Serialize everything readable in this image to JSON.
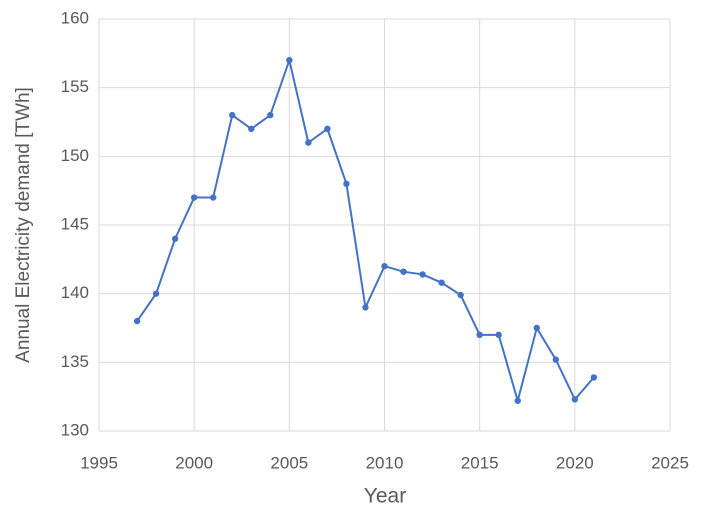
{
  "chart_data": {
    "type": "line",
    "xlabel": "Year",
    "ylabel": "Annual Electricity demand [TWh]",
    "x": [
      1997,
      1998,
      1999,
      2000,
      2001,
      2002,
      2003,
      2004,
      2005,
      2006,
      2007,
      2008,
      2009,
      2010,
      2011,
      2012,
      2013,
      2014,
      2015,
      2016,
      2017,
      2018,
      2019,
      2020,
      2021
    ],
    "series": [
      {
        "color": "#4472c4",
        "values": [
          138,
          140,
          144,
          147,
          147,
          153,
          152,
          153,
          157,
          151,
          152,
          148,
          139,
          142,
          141.6,
          141.4,
          140.8,
          139.9,
          137,
          137,
          132.2,
          137.5,
          135.2,
          132.3,
          133.9
        ]
      }
    ],
    "xlim": [
      1995,
      2025
    ],
    "xticks": [
      1995,
      2000,
      2005,
      2010,
      2015,
      2020,
      2025
    ],
    "ylim": [
      130,
      160
    ],
    "yticks": [
      130,
      135,
      140,
      145,
      150,
      155,
      160
    ],
    "grid": true
  }
}
